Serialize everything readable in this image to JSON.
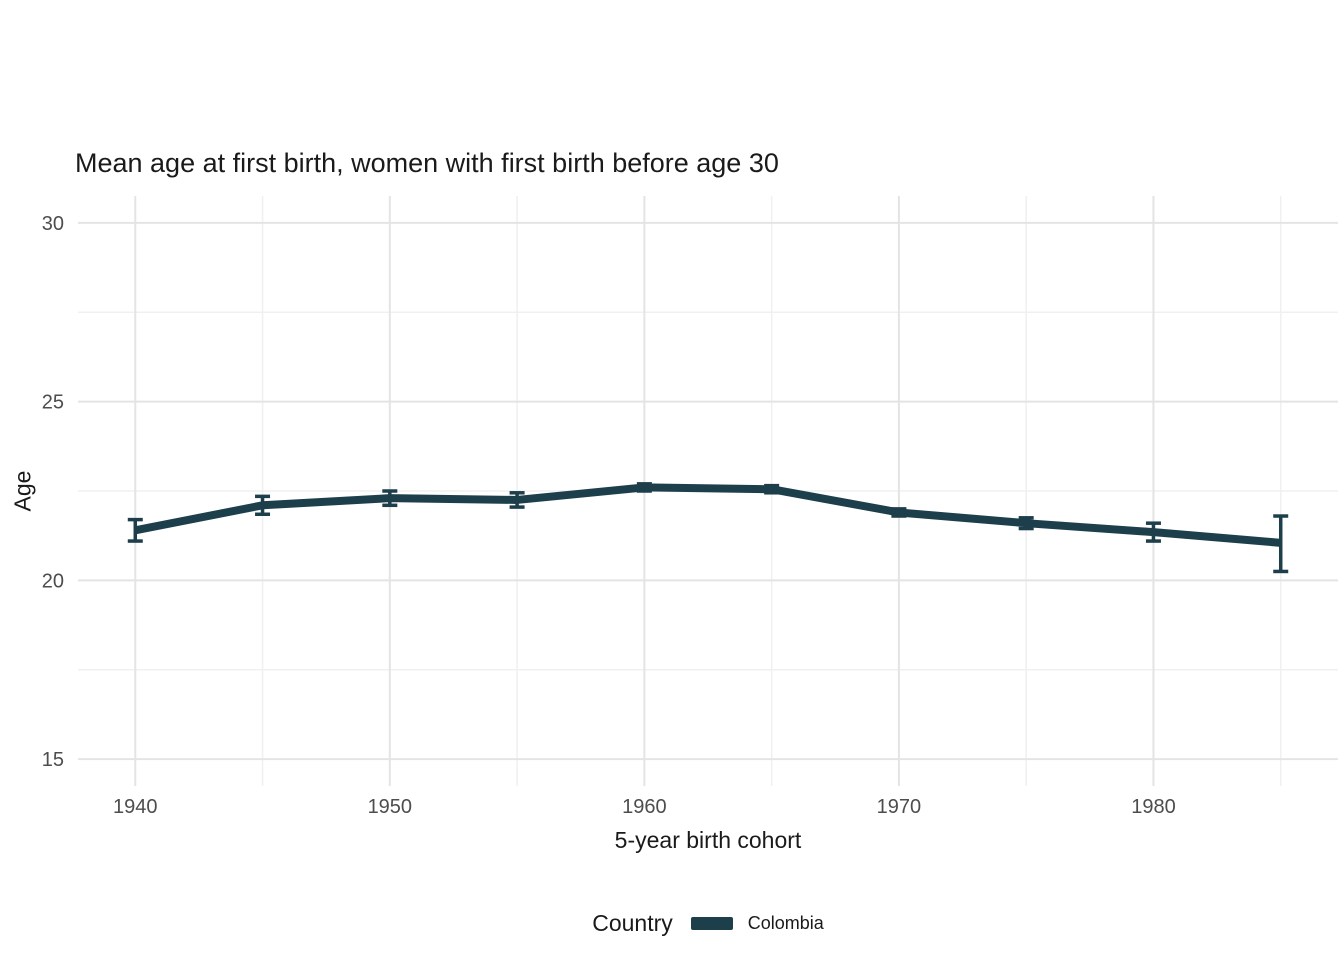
{
  "chart_data": {
    "type": "line",
    "title": "Mean age at first birth, women with first birth before age 30",
    "xlabel": "5-year birth cohort",
    "ylabel": "Age",
    "x": [
      1940,
      1945,
      1950,
      1955,
      1960,
      1965,
      1970,
      1975,
      1980,
      1985
    ],
    "series": [
      {
        "name": "Colombia",
        "color": "#1d3f4c",
        "values": [
          21.4,
          22.1,
          22.3,
          22.25,
          22.6,
          22.55,
          21.9,
          21.6,
          21.35,
          21.05
        ],
        "ci_low": [
          21.1,
          21.85,
          22.1,
          22.05,
          22.5,
          22.45,
          21.8,
          21.45,
          21.1,
          20.25
        ],
        "ci_high": [
          21.7,
          22.35,
          22.5,
          22.45,
          22.7,
          22.65,
          22.0,
          21.75,
          21.6,
          21.8
        ]
      }
    ],
    "x_ticks": [
      1940,
      1950,
      1960,
      1970,
      1980
    ],
    "x_minor": [
      1945,
      1955,
      1965,
      1975,
      1985
    ],
    "y_ticks": [
      15,
      20,
      25,
      30
    ],
    "y_minor": [
      17.5,
      22.5,
      27.5
    ],
    "xlim": [
      1937.75,
      1987.25
    ],
    "ylim": [
      14.25,
      30.75
    ],
    "grid": true,
    "legend_position": "bottom"
  },
  "legend": {
    "title": "Country",
    "entries": [
      {
        "label": "Colombia",
        "color": "#1d3f4c"
      }
    ]
  },
  "colors": {
    "series_accent": "#1d3f4c",
    "tick_label": "#4d4d4d",
    "major_grid": "#e4e4e4",
    "minor_grid": "#f0f0f0"
  }
}
